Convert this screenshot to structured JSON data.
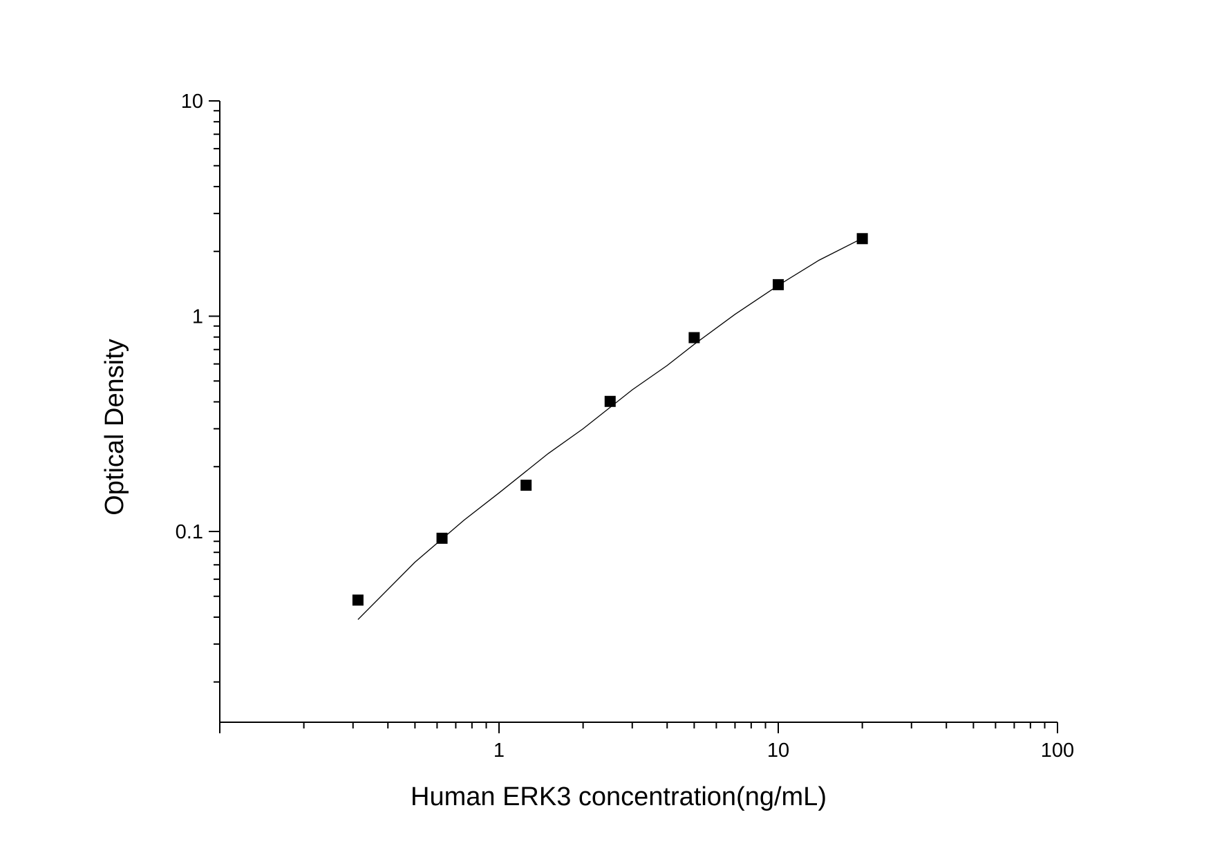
{
  "chart_data": {
    "type": "scatter",
    "title": "",
    "xlabel": "Human ERK3 concentration(ng/mL)",
    "ylabel": "Optical Density",
    "x_scale": "log",
    "y_scale": "log",
    "xlim": [
      0.1,
      100
    ],
    "ylim": [
      0.013,
      10
    ],
    "x_tick_labels": [
      "1",
      "10",
      "100"
    ],
    "x_tick_values": [
      1,
      10,
      100
    ],
    "y_tick_labels": [
      "0.1",
      "1",
      "10"
    ],
    "y_tick_values": [
      0.1,
      1,
      10
    ],
    "grid": false,
    "legend": "none",
    "series": [
      {
        "marker": "square",
        "x": [
          0.3125,
          0.625,
          1.25,
          2.5,
          5,
          10,
          20
        ],
        "y": [
          0.048,
          0.093,
          0.164,
          0.402,
          0.795,
          1.401,
          2.292
        ]
      }
    ],
    "fit_curve": {
      "x": [
        0.3125,
        0.5,
        0.75,
        1,
        1.5,
        2,
        3,
        4,
        5,
        7,
        10,
        14,
        20
      ],
      "y": [
        0.039,
        0.072,
        0.113,
        0.151,
        0.23,
        0.3,
        0.455,
        0.59,
        0.74,
        1.02,
        1.39,
        1.82,
        2.3
      ]
    },
    "colors": {
      "marker": "#000000",
      "line": "#000000",
      "axes": "#000000"
    }
  }
}
